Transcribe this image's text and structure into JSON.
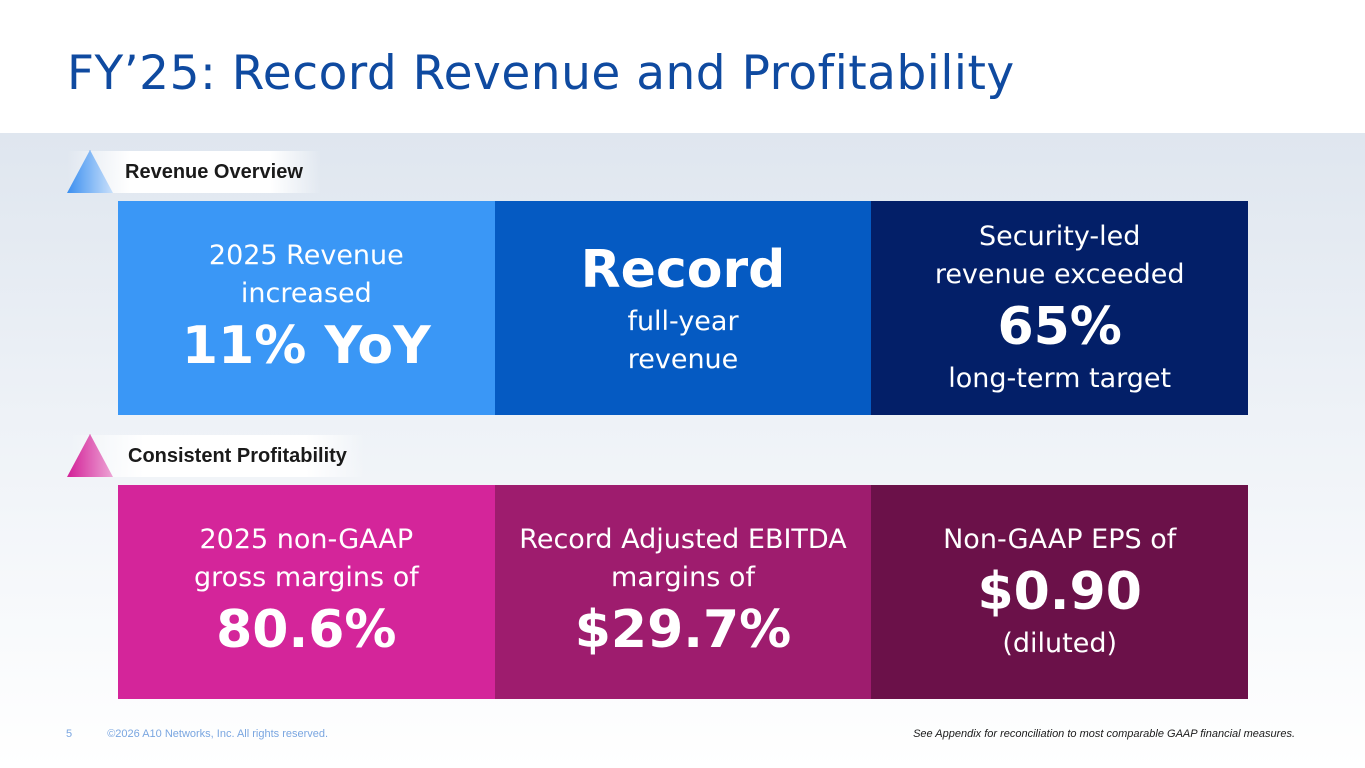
{
  "slide": {
    "title": "FY’25: Record Revenue and Profitability"
  },
  "revenue_section": {
    "label": "Revenue Overview",
    "tiles": [
      {
        "line1": "2025 Revenue",
        "line2": "increased",
        "highlight": "11% YoY"
      },
      {
        "highlight": "Record",
        "line1": "full-year",
        "line2": "revenue"
      },
      {
        "line1": "Security-led",
        "line2": "revenue exceeded",
        "highlight": "65%",
        "line3": "long-term target"
      }
    ]
  },
  "profitability_section": {
    "label": "Consistent Profitability",
    "tiles": [
      {
        "line1": "2025 non-GAAP",
        "line2": "gross margins of",
        "highlight": "80.6%"
      },
      {
        "line1": "Record Adjusted EBITDA",
        "line2": "margins of",
        "highlight": "$29.7%"
      },
      {
        "line1": "Non-GAAP EPS of",
        "highlight": "$0.90",
        "line2": "(diluted)"
      }
    ]
  },
  "footer": {
    "page_number": "5",
    "copyright": "©2026 A10 Networks, Inc. All rights reserved.",
    "note": "See Appendix for reconciliation to most comparable GAAP financial measures."
  },
  "colors": {
    "title": "#0f4aa0",
    "revenue_tiles": [
      "#3a97f6",
      "#055ac2",
      "#031f68"
    ],
    "profitability_tiles": [
      "#d4259a",
      "#9e1c6e",
      "#6b1149"
    ]
  }
}
